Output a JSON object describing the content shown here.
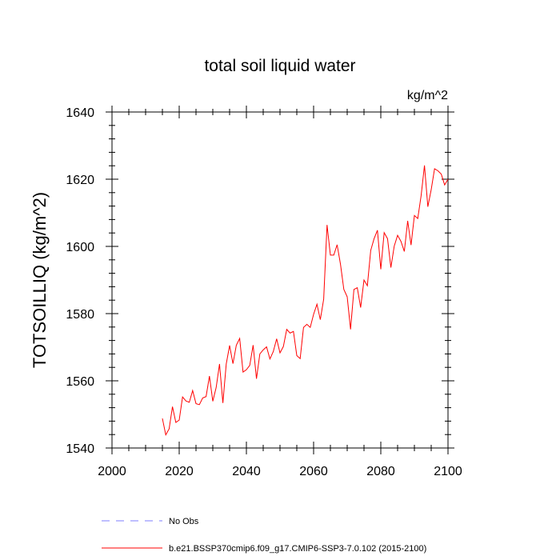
{
  "chart_data": {
    "type": "line",
    "title": "total soil liquid water",
    "units": "kg/m^2",
    "ylabel": "TOTSOILLIQ  (kg/m^2)",
    "xlabel": "",
    "xlim": [
      2000,
      2100
    ],
    "ylim": [
      1540,
      1640
    ],
    "xticks": [
      2000,
      2020,
      2040,
      2060,
      2080,
      2100
    ],
    "yticks": [
      1540,
      1560,
      1580,
      1600,
      1620,
      1640
    ],
    "grid": false,
    "legend": [
      {
        "label": "No Obs",
        "color": "#7f7fff",
        "style": "dashed"
      },
      {
        "label": "b.e21.BSSP370cmip6.f09_g17.CMIP6-SSP3-7.0.102 (2015-2100)",
        "color": "#ff0000",
        "style": "solid"
      }
    ],
    "series": [
      {
        "name": "b.e21.BSSP370cmip6.f09_g17.CMIP6-SSP3-7.0.102 (2015-2100)",
        "color": "#ff0000",
        "x": [
          2015,
          2016,
          2017,
          2018,
          2019,
          2020,
          2021,
          2022,
          2023,
          2024,
          2025,
          2026,
          2027,
          2028,
          2029,
          2030,
          2031,
          2032,
          2033,
          2034,
          2035,
          2036,
          2037,
          2038,
          2039,
          2040,
          2041,
          2042,
          2043,
          2044,
          2045,
          2046,
          2047,
          2048,
          2049,
          2050,
          2051,
          2052,
          2053,
          2054,
          2055,
          2056,
          2057,
          2058,
          2059,
          2060,
          2061,
          2062,
          2063,
          2064,
          2065,
          2066,
          2067,
          2068,
          2069,
          2070,
          2071,
          2072,
          2073,
          2074,
          2075,
          2076,
          2077,
          2078,
          2079,
          2080,
          2081,
          2082,
          2083,
          2084,
          2085,
          2086,
          2087,
          2088,
          2089,
          2090,
          2091,
          2092,
          2093,
          2094,
          2095,
          2096,
          2097,
          2098,
          2099,
          2100
        ],
        "y": [
          1548.8,
          1543.9,
          1545.7,
          1552.3,
          1547.6,
          1548.3,
          1555.2,
          1554.0,
          1553.6,
          1557.1,
          1553.2,
          1552.9,
          1554.9,
          1555.3,
          1561.4,
          1553.9,
          1558.0,
          1565.0,
          1553.4,
          1565.0,
          1570.5,
          1565.1,
          1570.6,
          1572.6,
          1562.6,
          1563.3,
          1564.6,
          1570.6,
          1560.6,
          1568.0,
          1569.2,
          1570.1,
          1566.5,
          1568.7,
          1572.5,
          1568.3,
          1570.2,
          1575.3,
          1574.2,
          1574.7,
          1567.5,
          1566.6,
          1575.9,
          1576.8,
          1575.9,
          1579.8,
          1582.8,
          1578.2,
          1584.3,
          1606.4,
          1597.4,
          1597.4,
          1600.5,
          1594.7,
          1587.2,
          1585.0,
          1575.3,
          1587.2,
          1587.7,
          1581.8,
          1590.0,
          1588.3,
          1598.8,
          1602.3,
          1604.8,
          1593.2,
          1604.1,
          1602.3,
          1593.7,
          1600.1,
          1603.3,
          1601.5,
          1598.5,
          1607.6,
          1600.4,
          1609.2,
          1608.3,
          1615.1,
          1624.1,
          1611.8,
          1616.9,
          1623.1,
          1622.5,
          1621.5,
          1618.3,
          1620.0
        ]
      }
    ]
  }
}
